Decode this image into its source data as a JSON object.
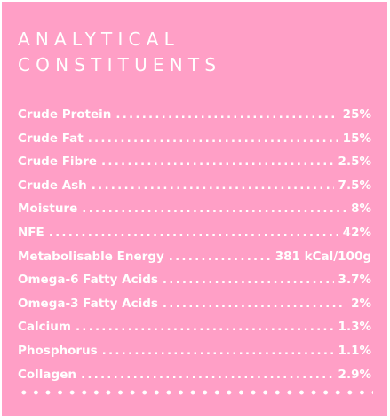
{
  "title_lines": [
    "ANALYTICAL",
    "CONSTITUENTS"
  ],
  "constituents": [
    {
      "label": "Crude Protein",
      "value": "25%"
    },
    {
      "label": "Crude Fat",
      "value": "15%"
    },
    {
      "label": "Crude Fibre",
      "value": "2.5%"
    },
    {
      "label": "Crude Ash",
      "value": "7.5%"
    },
    {
      "label": "Moisture",
      "value": "8%"
    },
    {
      "label": "NFE",
      "value": "42%"
    },
    {
      "label": "Metabolisable Energy",
      "value": "381 kCal/100g"
    },
    {
      "label": "Omega-6 Fatty Acids",
      "value": "3.7%"
    },
    {
      "label": "Omega-3 Fatty Acids",
      "value": "2%"
    },
    {
      "label": "Calcium",
      "value": "1.3%"
    },
    {
      "label": "Phosphorus",
      "value": "1.1%"
    },
    {
      "label": "Collagen",
      "value": "2.9%"
    }
  ],
  "colors": {
    "panel_background": "#ff9fc6",
    "text": "#ffffff"
  }
}
